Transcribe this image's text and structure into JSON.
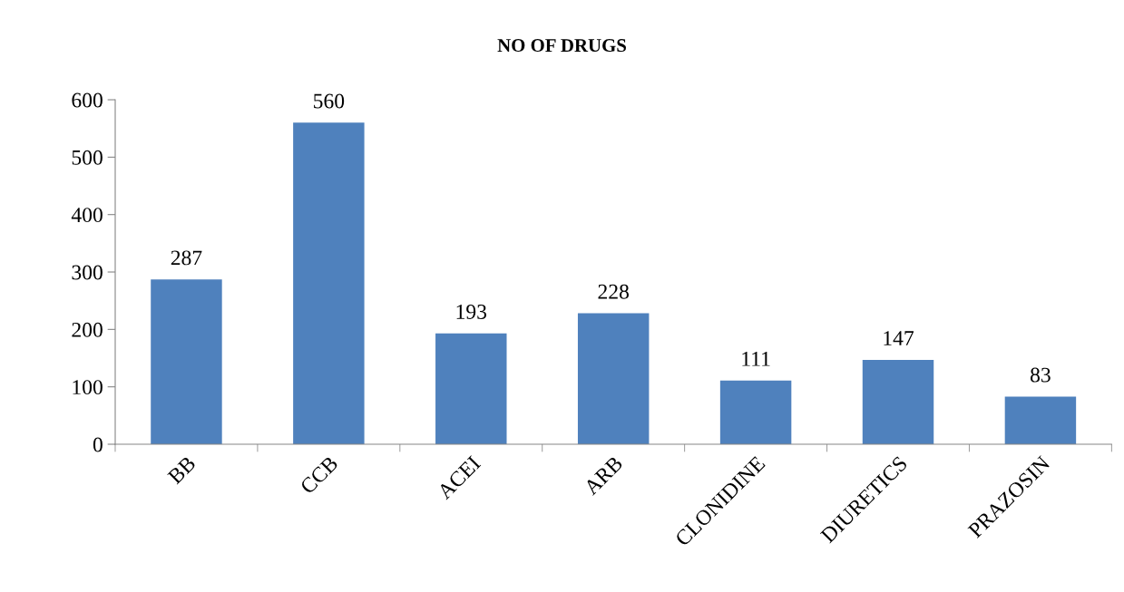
{
  "chart_data": {
    "type": "bar",
    "title": "NO OF DRUGS",
    "categories": [
      "BB",
      "CCB",
      "ACEI",
      "ARB",
      "CLONIDINE",
      "DIURETICS",
      "PRAZOSIN"
    ],
    "values": [
      287,
      560,
      193,
      228,
      111,
      147,
      83
    ],
    "color": "#4f81bd",
    "ylim": [
      0,
      600
    ],
    "yticks": [
      0,
      100,
      200,
      300,
      400,
      500,
      600
    ],
    "grid": false,
    "data_labels": true
  }
}
